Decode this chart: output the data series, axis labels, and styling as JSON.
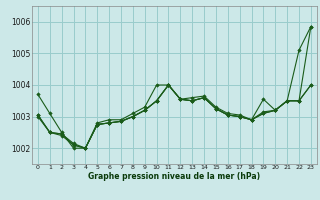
{
  "title": "Graphe pression niveau de la mer (hPa)",
  "background_color": "#cce8e8",
  "grid_color": "#99cccc",
  "line_color": "#1a5c1a",
  "marker_color": "#1a5c1a",
  "xlim": [
    -0.5,
    23.5
  ],
  "ylim": [
    1001.5,
    1006.5
  ],
  "yticks": [
    1002,
    1003,
    1004,
    1005,
    1006
  ],
  "xticks": [
    0,
    1,
    2,
    3,
    4,
    5,
    6,
    7,
    8,
    9,
    10,
    11,
    12,
    13,
    14,
    15,
    16,
    17,
    18,
    19,
    20,
    21,
    22,
    23
  ],
  "series": [
    [
      1003.7,
      1003.1,
      1002.5,
      1002.0,
      1002.0,
      1002.8,
      1002.9,
      1002.9,
      1003.1,
      1003.3,
      1004.0,
      1004.0,
      1003.55,
      1003.6,
      1003.65,
      1003.3,
      1003.1,
      1003.05,
      1002.9,
      1003.55,
      1003.2,
      1003.5,
      1005.1,
      1005.85
    ],
    [
      1003.05,
      1002.5,
      1002.45,
      1002.15,
      1002.0,
      1002.75,
      1002.8,
      1002.85,
      1003.0,
      1003.2,
      1003.5,
      1004.0,
      1003.55,
      1003.5,
      1003.6,
      1003.25,
      1003.05,
      1003.0,
      1002.9,
      1003.15,
      1003.2,
      1003.5,
      1003.5,
      1004.0
    ],
    [
      1003.05,
      1002.5,
      1002.45,
      1002.1,
      1002.0,
      1002.75,
      1002.8,
      1002.85,
      1003.0,
      1003.2,
      1003.5,
      1004.0,
      1003.55,
      1003.5,
      1003.6,
      1003.25,
      1003.05,
      1003.0,
      1002.9,
      1003.1,
      1003.2,
      1003.5,
      1003.5,
      1005.85
    ],
    [
      1003.0,
      1002.5,
      1002.4,
      1002.1,
      1002.0,
      1002.75,
      1002.8,
      1002.85,
      1003.0,
      1003.2,
      1003.5,
      1004.0,
      1003.55,
      1003.5,
      1003.6,
      1003.25,
      1003.05,
      1003.0,
      1002.9,
      1003.1,
      1003.2,
      1003.5,
      1003.5,
      1004.0
    ]
  ]
}
